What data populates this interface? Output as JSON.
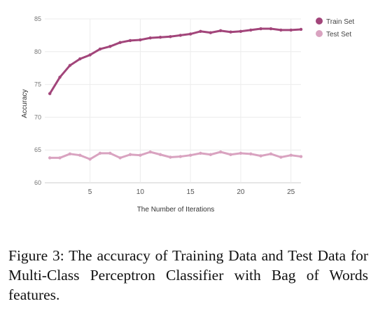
{
  "chart_data": {
    "type": "line",
    "xlabel": "The Number of Iterations",
    "ylabel": "Accuracy",
    "xlim": [
      0.5,
      26
    ],
    "ylim": [
      60,
      85
    ],
    "xticks": [
      5,
      10,
      15,
      20,
      25
    ],
    "yticks": [
      60,
      65,
      70,
      75,
      80,
      85
    ],
    "grid": true,
    "legend_position": "top-right",
    "x": [
      1,
      2,
      3,
      4,
      5,
      6,
      7,
      8,
      9,
      10,
      11,
      12,
      13,
      14,
      15,
      16,
      17,
      18,
      19,
      20,
      21,
      22,
      23,
      24,
      25,
      26
    ],
    "series": [
      {
        "name": "Train Set",
        "color": "#a2457a",
        "values": [
          73.6,
          76.1,
          77.9,
          78.9,
          79.5,
          80.4,
          80.8,
          81.4,
          81.7,
          81.8,
          82.1,
          82.2,
          82.3,
          82.5,
          82.7,
          83.1,
          82.9,
          83.2,
          83.0,
          83.1,
          83.3,
          83.5,
          83.5,
          83.3,
          83.3,
          83.4
        ]
      },
      {
        "name": "Test Set",
        "color": "#d9a3c0",
        "values": [
          63.8,
          63.8,
          64.4,
          64.2,
          63.6,
          64.5,
          64.5,
          63.8,
          64.3,
          64.2,
          64.7,
          64.3,
          63.9,
          64.0,
          64.2,
          64.5,
          64.3,
          64.7,
          64.3,
          64.5,
          64.4,
          64.1,
          64.4,
          63.9,
          64.2,
          64.0
        ]
      }
    ]
  },
  "caption": "Figure 3: The accuracy of Training Data and Test Data for Multi-Class Perceptron Classifier with Bag of Words features."
}
